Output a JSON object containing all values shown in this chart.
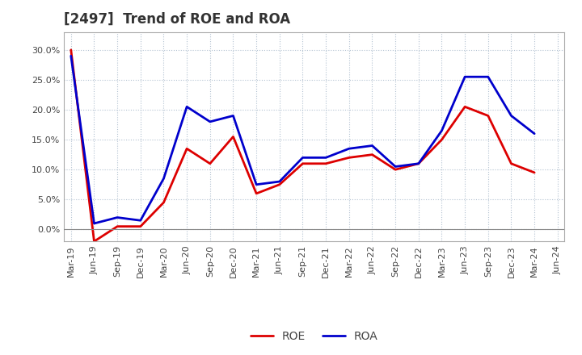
{
  "title": "[2497]  Trend of ROE and ROA",
  "x_labels": [
    "Mar-19",
    "Jun-19",
    "Sep-19",
    "Dec-19",
    "Mar-20",
    "Jun-20",
    "Sep-20",
    "Dec-20",
    "Mar-21",
    "Jun-21",
    "Sep-21",
    "Dec-21",
    "Mar-22",
    "Jun-22",
    "Sep-22",
    "Dec-22",
    "Mar-23",
    "Jun-23",
    "Sep-23",
    "Dec-23",
    "Mar-24",
    "Jun-24"
  ],
  "ROE": [
    30.0,
    -2.0,
    0.5,
    0.5,
    4.5,
    13.5,
    11.0,
    15.5,
    6.0,
    7.5,
    11.0,
    11.0,
    12.0,
    12.5,
    10.0,
    11.0,
    15.0,
    20.5,
    19.0,
    11.0,
    9.5,
    null
  ],
  "ROA": [
    29.0,
    1.0,
    2.0,
    1.5,
    8.5,
    20.5,
    18.0,
    19.0,
    7.5,
    8.0,
    12.0,
    12.0,
    13.5,
    14.0,
    10.5,
    11.0,
    16.5,
    25.5,
    25.5,
    19.0,
    16.0,
    null
  ],
  "roe_color": "#dd0000",
  "roa_color": "#0000cc",
  "line_width": 2.0,
  "ylim": [
    -2,
    33
  ],
  "yticks": [
    0.0,
    5.0,
    10.0,
    15.0,
    20.0,
    25.0,
    30.0
  ],
  "background_color": "#ffffff",
  "grid_color": "#aaaaaa",
  "title_fontsize": 12,
  "legend_fontsize": 10,
  "tick_fontsize": 8,
  "ytick_color": "#444444"
}
